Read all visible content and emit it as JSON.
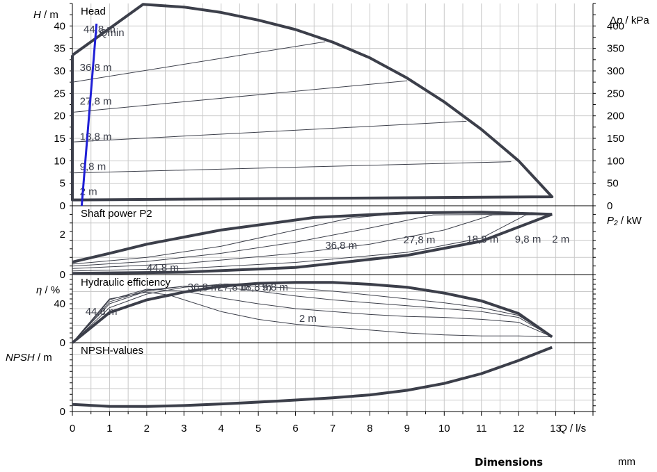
{
  "chart_data": [
    {
      "type": "line",
      "title": "Head",
      "ylabel": "H / m",
      "ylabel_right": "Δp / kPa",
      "ylim": [
        0,
        45
      ],
      "yticks": [
        0,
        5,
        10,
        15,
        20,
        25,
        30,
        35,
        40
      ],
      "yticks_right": [
        0,
        50,
        100,
        150,
        200,
        250,
        300,
        350,
        400
      ],
      "envelope": [
        [
          0,
          33.5
        ],
        [
          1.9,
          44.8
        ],
        [
          3,
          44.2
        ],
        [
          4,
          43
        ],
        [
          5,
          41.3
        ],
        [
          6,
          39.2
        ],
        [
          7,
          36.4
        ],
        [
          8,
          32.9
        ],
        [
          9,
          28.4
        ],
        [
          10,
          23.1
        ],
        [
          11,
          17
        ],
        [
          12,
          10
        ],
        [
          12.9,
          2
        ],
        [
          0,
          1.3
        ],
        [
          0,
          33.5
        ]
      ],
      "series": [
        {
          "name": "36,8 m",
          "label_at": [
            0.2,
            30.8
          ],
          "values": [
            [
              0,
              27.5
            ],
            [
              6.8,
              36.5
            ]
          ]
        },
        {
          "name": "27,8 m",
          "label_at": [
            0.2,
            23.3
          ],
          "values": [
            [
              0,
              20.8
            ],
            [
              9.0,
              27.8
            ]
          ]
        },
        {
          "name": "18,8 m",
          "label_at": [
            0.2,
            15.4
          ],
          "values": [
            [
              0,
              14.2
            ],
            [
              10.6,
              18.8
            ]
          ]
        },
        {
          "name": "9,8 m",
          "label_at": [
            0.2,
            8.7
          ],
          "values": [
            [
              0,
              7.3
            ],
            [
              11.8,
              9.8
            ]
          ]
        },
        {
          "name": "2 m",
          "label_at": [
            0.2,
            3.2
          ],
          "values": [
            [
              0,
              1.5
            ],
            [
              12.9,
              2
            ]
          ]
        },
        {
          "name": "44,8 m",
          "label_at": [
            0.3,
            39.3
          ],
          "values": []
        }
      ],
      "qmin": {
        "name": "Qmin",
        "color": "#1f1fd6",
        "values": [
          [
            0.25,
            0
          ],
          [
            0.65,
            40.5
          ]
        ]
      }
    },
    {
      "type": "line",
      "title": "Shaft power P2",
      "ylabel": "P₂ / kW",
      "ylim": [
        0,
        3.4
      ],
      "yticks": [
        0,
        2
      ],
      "series": [
        {
          "name": "44,8 m",
          "label_at": [
            2,
            0.35
          ],
          "values": [
            [
              0,
              0.62
            ],
            [
              1,
              1.05
            ],
            [
              2,
              1.5
            ],
            [
              4,
              2.2
            ],
            [
              6.5,
              2.82
            ],
            [
              9,
              3.05
            ],
            [
              11,
              3.08
            ],
            [
              12.9,
              2.98
            ]
          ]
        },
        {
          "name": "36,8 m",
          "label_at": [
            6.8,
            1.45
          ],
          "values": [
            [
              0,
              0.52
            ],
            [
              2,
              0.85
            ],
            [
              4,
              1.4
            ],
            [
              6,
              2.2
            ],
            [
              7.5,
              2.8
            ],
            [
              9,
              3.05
            ],
            [
              12.9,
              2.98
            ]
          ]
        },
        {
          "name": "27,8 m",
          "label_at": [
            8.9,
            1.72
          ],
          "values": [
            [
              0,
              0.42
            ],
            [
              2,
              0.65
            ],
            [
              4,
              1.05
            ],
            [
              6,
              1.6
            ],
            [
              8,
              2.3
            ],
            [
              9.7,
              2.95
            ],
            [
              12.9,
              2.98
            ]
          ]
        },
        {
          "name": "18,8 m",
          "label_at": [
            10.6,
            1.76
          ],
          "values": [
            [
              0,
              0.3
            ],
            [
              3,
              0.55
            ],
            [
              6,
              1.05
            ],
            [
              8,
              1.5
            ],
            [
              10,
              2.2
            ],
            [
              11.3,
              2.95
            ],
            [
              12.9,
              2.98
            ]
          ]
        },
        {
          "name": "9,8 m",
          "label_at": [
            11.9,
            1.76
          ],
          "values": [
            [
              0,
              0.18
            ],
            [
              3,
              0.3
            ],
            [
              6,
              0.6
            ],
            [
              9,
              1.1
            ],
            [
              11,
              1.8
            ],
            [
              12.2,
              2.95
            ],
            [
              12.9,
              2.98
            ]
          ]
        },
        {
          "name": "2 m",
          "label_at": [
            12.9,
            1.76
          ],
          "values": [
            [
              0,
              0.06
            ],
            [
              3,
              0.12
            ],
            [
              6,
              0.35
            ],
            [
              9,
              0.95
            ],
            [
              11,
              1.65
            ],
            [
              12.9,
              2.98
            ]
          ]
        }
      ]
    },
    {
      "type": "line",
      "title": "Hydraulic efficiency",
      "ylabel": "η / %",
      "ylim": [
        0,
        70
      ],
      "yticks": [
        0,
        40
      ],
      "series": [
        {
          "name": "44,8 m",
          "label_at": [
            0.35,
            32
          ],
          "values": [
            [
              0,
              0
            ],
            [
              1,
              31
            ],
            [
              2,
              44
            ],
            [
              3,
              52
            ],
            [
              4,
              58
            ],
            [
              5,
              61
            ],
            [
              6,
              62
            ],
            [
              7,
              62
            ],
            [
              8,
              60
            ],
            [
              9,
              57
            ],
            [
              10,
              51
            ],
            [
              11,
              43
            ],
            [
              12,
              30
            ],
            [
              12.9,
              6
            ]
          ]
        },
        {
          "name": "36,8 m",
          "label_at": [
            3.1,
            57
          ],
          "values": [
            [
              0,
              0
            ],
            [
              1,
              36
            ],
            [
              2,
              50
            ],
            [
              3,
              57
            ],
            [
              4,
              60
            ],
            [
              5,
              61
            ],
            [
              6,
              62
            ],
            [
              7,
              62
            ],
            [
              8,
              60
            ],
            [
              9,
              56
            ],
            [
              10,
              50
            ],
            [
              11,
              42
            ],
            [
              12,
              30
            ],
            [
              12.9,
              6
            ]
          ]
        },
        {
          "name": "27,8 m",
          "label_at": [
            3.9,
            57
          ],
          "values": [
            [
              0,
              0
            ],
            [
              1,
              40
            ],
            [
              2,
              53
            ],
            [
              3,
              58
            ],
            [
              4,
              59
            ],
            [
              5,
              58
            ],
            [
              6,
              56
            ],
            [
              7,
              53
            ],
            [
              8,
              49
            ],
            [
              9,
              45
            ],
            [
              10,
              41
            ],
            [
              11,
              36
            ],
            [
              12,
              28
            ],
            [
              12.9,
              6
            ]
          ]
        },
        {
          "name": "18,8 m",
          "label_at": [
            4.5,
            57
          ],
          "values": [
            [
              0,
              0
            ],
            [
              1,
              42
            ],
            [
              2,
              54
            ],
            [
              3,
              58
            ],
            [
              4,
              57
            ],
            [
              5,
              53
            ],
            [
              6,
              48
            ],
            [
              7,
              44
            ],
            [
              8,
              41
            ],
            [
              9,
              38
            ],
            [
              10,
              35
            ],
            [
              11,
              32
            ],
            [
              12,
              26
            ],
            [
              12.9,
              6
            ]
          ]
        },
        {
          "name": "9,8 m",
          "label_at": [
            5.1,
            57
          ],
          "values": [
            [
              0,
              0
            ],
            [
              1,
              44
            ],
            [
              2,
              55
            ],
            [
              3,
              53
            ],
            [
              4,
              46
            ],
            [
              5,
              40
            ],
            [
              6,
              35
            ],
            [
              7,
              32
            ],
            [
              8,
              29
            ],
            [
              9,
              27
            ],
            [
              10,
              26
            ],
            [
              11,
              24
            ],
            [
              12,
              21
            ],
            [
              12.9,
              6
            ]
          ]
        },
        {
          "name": "2 m",
          "label_at": [
            6.1,
            25
          ],
          "values": [
            [
              0,
              0
            ],
            [
              1,
              45
            ],
            [
              2,
              52
            ],
            [
              2.6,
              49
            ],
            [
              4,
              32
            ],
            [
              5,
              24
            ],
            [
              6,
              19
            ],
            [
              7,
              16
            ],
            [
              8,
              13
            ],
            [
              9,
              10
            ],
            [
              10,
              8
            ],
            [
              11,
              7
            ],
            [
              12,
              7
            ],
            [
              12.9,
              6
            ]
          ]
        }
      ]
    },
    {
      "type": "line",
      "title": "NPSH-values",
      "ylabel": "NPSH / m",
      "ylim": [
        0,
        6
      ],
      "yticks": [
        0
      ],
      "series": [
        {
          "name": "",
          "values": [
            [
              0,
              0.62
            ],
            [
              1,
              0.45
            ],
            [
              2,
              0.44
            ],
            [
              3,
              0.52
            ],
            [
              4,
              0.66
            ],
            [
              5,
              0.82
            ],
            [
              6,
              1.0
            ],
            [
              7,
              1.2
            ],
            [
              8,
              1.45
            ],
            [
              9,
              1.85
            ],
            [
              10,
              2.45
            ],
            [
              11,
              3.3
            ],
            [
              12,
              4.45
            ],
            [
              12.9,
              5.6
            ]
          ]
        }
      ]
    }
  ],
  "x_axis": {
    "label": "Q / l/s",
    "ticks": [
      0,
      1,
      2,
      3,
      4,
      5,
      6,
      7,
      8,
      9,
      10,
      11,
      12,
      13
    ],
    "xlim": [
      0,
      14
    ]
  },
  "footer": {
    "dimensions_label": "Dimensions",
    "unit": "mm"
  },
  "colors": {
    "main": "#3c3f4a",
    "thin": "#3c3f4a",
    "qmin": "#1f1fd6",
    "grid": "#c8c8c8",
    "text": "#3c3f4a"
  }
}
